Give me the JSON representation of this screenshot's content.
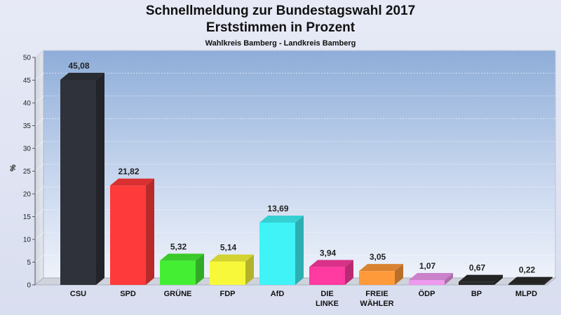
{
  "chart_data": {
    "type": "bar",
    "title": "Schnellmeldung zur Bundestagswahl 2017",
    "subtitle": "Erststimmen in Prozent",
    "subsubtitle": "Wahlkreis Bamberg - Landkreis Bamberg",
    "ylabel": "%",
    "ylim": [
      0,
      50
    ],
    "yticks": [
      0,
      5,
      10,
      15,
      20,
      25,
      30,
      35,
      40,
      45,
      50
    ],
    "categories": [
      "CSU",
      "SPD",
      "GRÜNE",
      "FDP",
      "AfD",
      "DIE LINKE",
      "FREIE WÄHLER",
      "ÖDP",
      "BP",
      "MLPD"
    ],
    "category_lines": [
      [
        "CSU"
      ],
      [
        "SPD"
      ],
      [
        "GRÜNE"
      ],
      [
        "FDP"
      ],
      [
        "AfD"
      ],
      [
        "DIE",
        "LINKE"
      ],
      [
        "FREIE",
        "WÄHLER"
      ],
      [
        "ÖDP"
      ],
      [
        "BP"
      ],
      [
        "MLPD"
      ]
    ],
    "values": [
      45.08,
      21.82,
      5.32,
      5.14,
      13.69,
      3.94,
      3.05,
      1.07,
      0.67,
      0.22
    ],
    "value_labels": [
      "45,08",
      "21,82",
      "5,32",
      "5,14",
      "13,69",
      "3,94",
      "3,05",
      "1,07",
      "0,67",
      "0,22"
    ],
    "colors": [
      "#2f323a",
      "#ff3a3a",
      "#44ee33",
      "#f8f83a",
      "#3ff3f7",
      "#ff3aa0",
      "#ff9a3a",
      "#ee99ee",
      "#2a2a2a",
      "#2a2a2a"
    ],
    "grid": true
  }
}
